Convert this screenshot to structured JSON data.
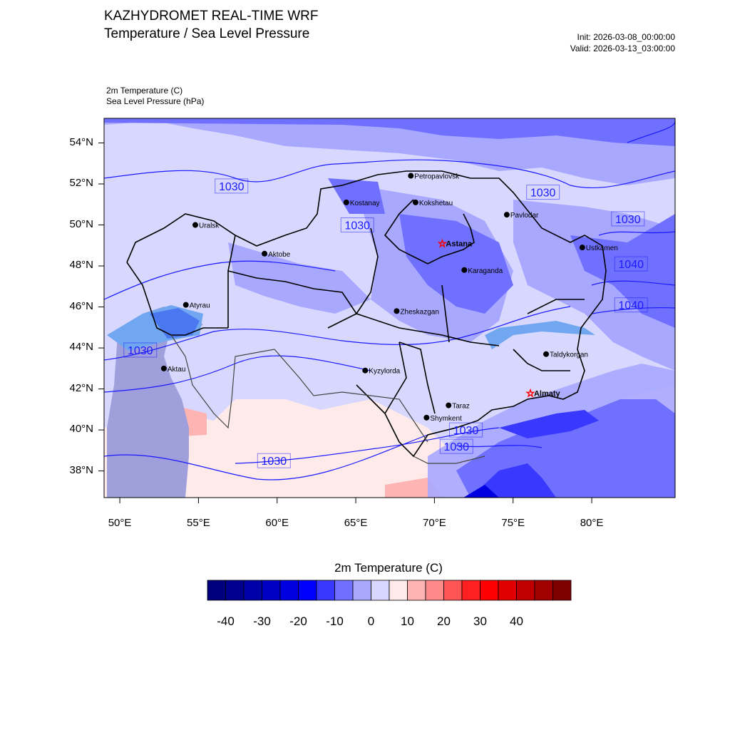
{
  "header": {
    "title": "KAZHYDROMET REAL-TIME WRF",
    "subtitle": "Temperature / Sea Level Pressure",
    "init": "Init: 2026-03-08_00:00:00",
    "valid": "Valid: 2026-03-13_03:00:00",
    "variable1": "2m Temperature   (C)",
    "variable2": "Sea Level Pressure   (hPa)"
  },
  "axes": {
    "lat_labels": [
      "54°N",
      "52°N",
      "50°N",
      "48°N",
      "46°N",
      "44°N",
      "42°N",
      "40°N",
      "38°N"
    ],
    "lat_values": [
      54,
      52,
      50,
      48,
      46,
      44,
      42,
      40,
      38
    ],
    "lon_labels": [
      "50°E",
      "55°E",
      "60°E",
      "65°E",
      "70°E",
      "75°E",
      "80°E"
    ],
    "lon_values": [
      50,
      55,
      60,
      65,
      70,
      75,
      80
    ],
    "lon_range": [
      49,
      85.3
    ],
    "lat_range": [
      36.7,
      55.2
    ]
  },
  "cities": [
    {
      "name": "Petropavlovsk",
      "lon": 68.5,
      "lat": 52.4,
      "capital": false
    },
    {
      "name": "Kostanay",
      "lon": 64.4,
      "lat": 51.1,
      "capital": false
    },
    {
      "name": "Kokshetau",
      "lon": 68.8,
      "lat": 51.1,
      "capital": false
    },
    {
      "name": "Pavlodar",
      "lon": 74.6,
      "lat": 50.5,
      "capital": false
    },
    {
      "name": "Uralsk",
      "lon": 54.8,
      "lat": 50.0,
      "capital": false
    },
    {
      "name": "Astana",
      "lon": 70.5,
      "lat": 49.1,
      "capital": true
    },
    {
      "name": "Aktobe",
      "lon": 59.2,
      "lat": 48.6,
      "capital": false
    },
    {
      "name": "Ustkamen",
      "lon": 79.4,
      "lat": 48.9,
      "capital": false
    },
    {
      "name": "Karaganda",
      "lon": 71.9,
      "lat": 47.8,
      "capital": false
    },
    {
      "name": "Atyrau",
      "lon": 54.2,
      "lat": 46.1,
      "capital": false
    },
    {
      "name": "Zheskazgan",
      "lon": 67.6,
      "lat": 45.8,
      "capital": false
    },
    {
      "name": "Taldykorgan",
      "lon": 77.1,
      "lat": 43.7,
      "capital": false
    },
    {
      "name": "Aktau",
      "lon": 52.8,
      "lat": 43.0,
      "capital": false
    },
    {
      "name": "Kyzylorda",
      "lon": 65.6,
      "lat": 42.9,
      "capital": false
    },
    {
      "name": "Almaty",
      "lon": 76.1,
      "lat": 41.8,
      "capital": true
    },
    {
      "name": "Taraz",
      "lon": 70.9,
      "lat": 41.2,
      "capital": false
    },
    {
      "name": "Shymkent",
      "lon": 69.5,
      "lat": 40.6,
      "capital": false
    }
  ],
  "isobar_labels": [
    {
      "text": "1030",
      "lon": 57.1,
      "lat": 51.9
    },
    {
      "text": "1030",
      "lon": 65.1,
      "lat": 50.0
    },
    {
      "text": "1030",
      "lon": 76.9,
      "lat": 51.6
    },
    {
      "text": "1030",
      "lon": 82.3,
      "lat": 50.3
    },
    {
      "text": "1040",
      "lon": 82.5,
      "lat": 48.1
    },
    {
      "text": "1040",
      "lon": 82.5,
      "lat": 46.1
    },
    {
      "text": "1030",
      "lon": 51.3,
      "lat": 43.9
    },
    {
      "text": "1030",
      "lon": 72.0,
      "lat": 40.0
    },
    {
      "text": "1030",
      "lon": 71.4,
      "lat": 39.2
    },
    {
      "text": "1030",
      "lon": 59.8,
      "lat": 38.5
    }
  ],
  "colorbar": {
    "title": "2m Temperature  (C)",
    "colors": [
      "#00007f",
      "#00008f",
      "#0000a8",
      "#0000c4",
      "#0000e0",
      "#0000ff",
      "#3838ff",
      "#7070ff",
      "#a8a8ff",
      "#d8d8ff",
      "#ffeaea",
      "#ffb4b4",
      "#ff8a8a",
      "#ff5454",
      "#ff2020",
      "#ff0000",
      "#e00000",
      "#c00000",
      "#a00000",
      "#800000"
    ],
    "labels": [
      "-40",
      "-30",
      "-20",
      "-10",
      "0",
      "10",
      "20",
      "30",
      "40"
    ]
  },
  "colors": {
    "isobar": "#1a1aff",
    "boundary": "#000000",
    "capital_star": "#ff0000"
  }
}
